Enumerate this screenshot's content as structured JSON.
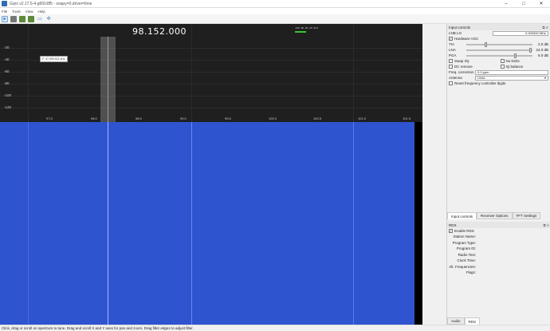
{
  "window": {
    "title": "Gqrx v2.17.5-4-g6f2c8f5 - soapy=0,driver=lime",
    "controls": [
      "–",
      "□",
      "✕"
    ]
  },
  "menu": [
    "File",
    "Tools",
    "View",
    "Help"
  ],
  "toolbar": {
    "icons": [
      "pointer-icon",
      "device-icon",
      "save-icon",
      "record-icon",
      "fullscreen-icon",
      "arrows-icon"
    ]
  },
  "spectrum": {
    "frequency": "98.152.000",
    "meter_scale": "-100 -80 -60 -40 -20 0",
    "cursor_tooltip": "F: 97,099.921 kHz",
    "db_labels": [
      "-20",
      "-40",
      "-60",
      "-80",
      "-100",
      "-120"
    ],
    "freq_labels": [
      "97.5",
      "98.0",
      "98.5",
      "99.0",
      "99.5",
      "100.0",
      "100.5",
      "101.0",
      "101.5"
    ]
  },
  "input_controls": {
    "title": "Input controls",
    "lnb_lo_label": "LNB LO",
    "lnb_lo_value": "0.000000 MHz",
    "hardware_agc": "Hardware AGC",
    "gains": [
      {
        "label": "TIA",
        "value": "2.0 dB",
        "level": 0.3
      },
      {
        "label": "LNA",
        "value": "24.0 dB",
        "level": 0.98
      },
      {
        "label": "PGA",
        "value": "6.0 dB",
        "level": 0.75
      }
    ],
    "swap_iq": "Swap I/Q",
    "no_limits": "No limits",
    "dc_remove": "DC remove",
    "iq_balance": "IQ balance",
    "freq_correction_label": "Freq. correction",
    "freq_correction_value": "0.0 ppm",
    "antenna_label": "Antenna",
    "antenna_value": "LNAL",
    "reset_freq": "Reset frequency controller digits"
  },
  "dock_tabs": [
    "Input controls",
    "Receiver Options",
    "FFT Settings"
  ],
  "rds": {
    "title": "RDS",
    "enable": "Enable RDS",
    "fields": [
      "Station Name:",
      "Program Type:",
      "Program ID:",
      "Radio Text:",
      "Clock Time:",
      "Alt. Frequencies:",
      "Flags:"
    ]
  },
  "rds_tabs": [
    "Audio",
    "RDS"
  ],
  "status": "Click, drag or scroll on spectrum to tune. Drag and scroll X and Y axes for pan and zoom. Drag filter edges to adjust filter."
}
